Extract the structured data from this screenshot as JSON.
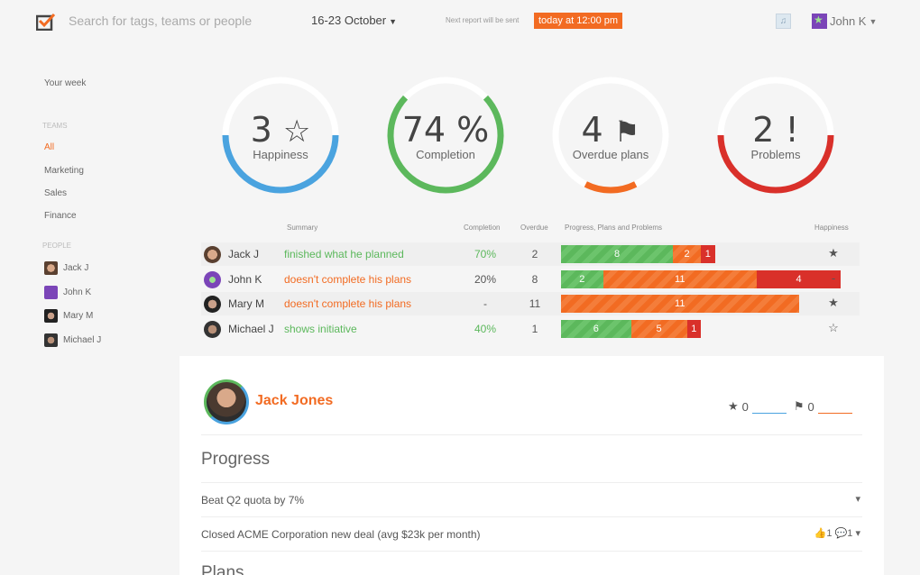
{
  "header": {
    "search_placeholder": "Search for tags, teams or people",
    "date_range": "16-23 October",
    "report_text": "Next report will be sent",
    "report_badge": "today at 12:00 pm",
    "user_name": "John K"
  },
  "sidebar": {
    "your_week": "Your week",
    "teams_heading": "TEAMS",
    "teams": [
      "All",
      "Marketing",
      "Sales",
      "Finance"
    ],
    "people_heading": "PEOPLE",
    "people": [
      "Jack J",
      "John K",
      "Mary M",
      "Michael J"
    ]
  },
  "gauges": [
    {
      "value": "3",
      "label": "Happiness",
      "color": "#4aa3df",
      "fill": 0.5
    },
    {
      "value": "74 %",
      "label": "Completion",
      "color": "#5cb85c",
      "fill": 0.74
    },
    {
      "value": "4",
      "label": "Overdue plans",
      "color": "#f26b22",
      "fill": 0.15
    },
    {
      "value": "2 !",
      "label": "Problems",
      "color": "#d9302a",
      "fill": 0.5
    }
  ],
  "table": {
    "headers": {
      "summary": "Summary",
      "completion": "Completion",
      "overdue": "Overdue",
      "progress": "Progress, Plans and Problems",
      "happiness": "Happiness"
    },
    "rows": [
      {
        "name": "Jack J",
        "summary": "finished what he planned",
        "summary_color": "green",
        "completion": "70%",
        "completion_color": "green",
        "overdue": "2",
        "overdue_color": "normal",
        "bars": [
          {
            "type": "g",
            "value": "8",
            "units": 8
          },
          {
            "type": "o",
            "value": "2",
            "units": 2
          },
          {
            "type": "r",
            "value": "1",
            "units": 1
          }
        ],
        "happiness": "★"
      },
      {
        "name": "John K",
        "summary": "doesn't complete his plans",
        "summary_color": "orange",
        "completion": "20%",
        "completion_color": "normal",
        "overdue": "8",
        "overdue_color": "orange",
        "bars": [
          {
            "type": "g",
            "value": "2",
            "units": 3
          },
          {
            "type": "o",
            "value": "11",
            "units": 11
          },
          {
            "type": "r",
            "value": "4",
            "units": 6
          }
        ],
        "happiness": "-"
      },
      {
        "name": "Mary M",
        "summary": "doesn't complete his plans",
        "summary_color": "orange",
        "completion": "-",
        "completion_color": "normal",
        "overdue": "11",
        "overdue_color": "orange",
        "bars": [
          {
            "type": "o",
            "value": "11",
            "units": 17
          }
        ],
        "happiness": "★"
      },
      {
        "name": "Michael J",
        "summary": "shows initiative",
        "summary_color": "green",
        "completion": "40%",
        "completion_color": "green",
        "overdue": "1",
        "overdue_color": "normal",
        "bars": [
          {
            "type": "g",
            "value": "6",
            "units": 5
          },
          {
            "type": "o",
            "value": "5",
            "units": 4
          },
          {
            "type": "r",
            "value": "1",
            "units": 1
          }
        ],
        "happiness": "☆"
      }
    ]
  },
  "detail": {
    "name": "Jack Jones",
    "star_count": "0",
    "flag_count": "0",
    "progress_heading": "Progress",
    "items": [
      {
        "text": "Beat Q2 quota by 7%",
        "meta": "▾"
      },
      {
        "text": "Closed ACME Corporation new deal (avg $23k per month)",
        "meta": "👍1 💬1 ▾"
      }
    ],
    "plans_heading": "Plans"
  },
  "colors": {
    "accent": "#f26b22",
    "green": "#5cb85c",
    "blue": "#4aa3df",
    "red": "#d9302a"
  }
}
